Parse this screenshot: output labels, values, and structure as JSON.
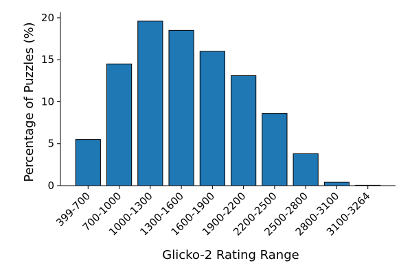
{
  "chart_data": {
    "type": "bar",
    "xlabel": "Glicko-2 Rating Range",
    "ylabel": "Percentage of Puzzles (%)",
    "categories": [
      "399-700",
      "700-1000",
      "1000-1300",
      "1300-1600",
      "1600-1900",
      "1900-2200",
      "2200-2500",
      "2500-2800",
      "2800-3100",
      "3100-3264"
    ],
    "values": [
      5.5,
      14.5,
      19.6,
      18.5,
      16.0,
      13.1,
      8.6,
      3.8,
      0.4,
      0.05
    ],
    "color": "#1f77b4",
    "ylim": [
      0,
      20.65
    ],
    "yticks": [
      0,
      5,
      10,
      15,
      20
    ]
  }
}
